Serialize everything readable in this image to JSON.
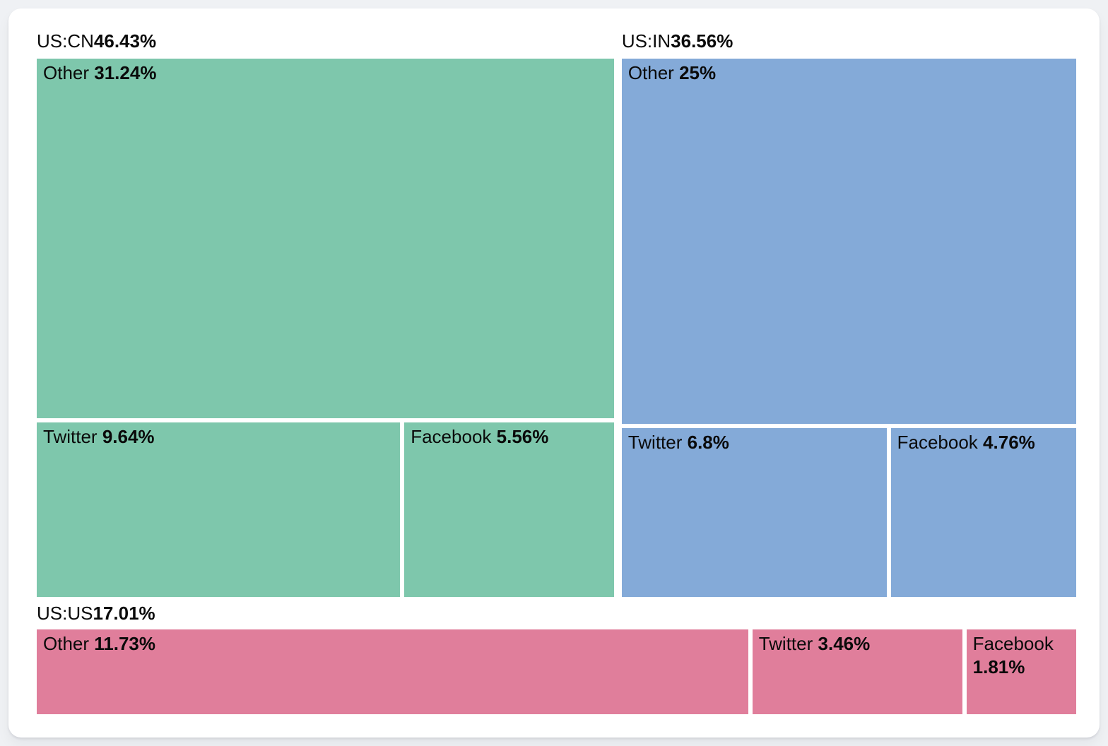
{
  "page": {
    "background_color": "#eff1f4",
    "card_color": "#ffffff",
    "text_color": "#0a0a0a"
  },
  "chart_data": {
    "type": "treemap",
    "title": "",
    "legend": "none",
    "layout_hint": "two large groups on top row (US:CN left, US:IN right), US:US as full-width bottom strip; each tile labeled 'name percent'",
    "groups": [
      {
        "label": "US:CN",
        "value": 46.43,
        "value_label": "46.43%",
        "color": "#7ec7ac",
        "orientation": "vertical",
        "children": [
          {
            "label": "Other",
            "value": 31.24,
            "value_label": "31.24%"
          },
          {
            "label": "Twitter",
            "value": 9.64,
            "value_label": "9.64%"
          },
          {
            "label": "Facebook",
            "value": 5.56,
            "value_label": "5.56%"
          }
        ]
      },
      {
        "label": "US:IN",
        "value": 36.56,
        "value_label": "36.56%",
        "color": "#84aad8",
        "orientation": "vertical",
        "children": [
          {
            "label": "Other",
            "value": 25,
            "value_label": "25%"
          },
          {
            "label": "Twitter",
            "value": 6.8,
            "value_label": "6.8%"
          },
          {
            "label": "Facebook",
            "value": 4.76,
            "value_label": "4.76%"
          }
        ]
      },
      {
        "label": "US:US",
        "value": 17.01,
        "value_label": "17.01%",
        "color": "#e07e9b",
        "orientation": "horizontal",
        "children": [
          {
            "label": "Other",
            "value": 11.73,
            "value_label": "11.73%"
          },
          {
            "label": "Twitter",
            "value": 3.46,
            "value_label": "3.46%"
          },
          {
            "label": "Facebook",
            "value": 1.81,
            "value_label": "1.81%"
          }
        ]
      }
    ]
  }
}
